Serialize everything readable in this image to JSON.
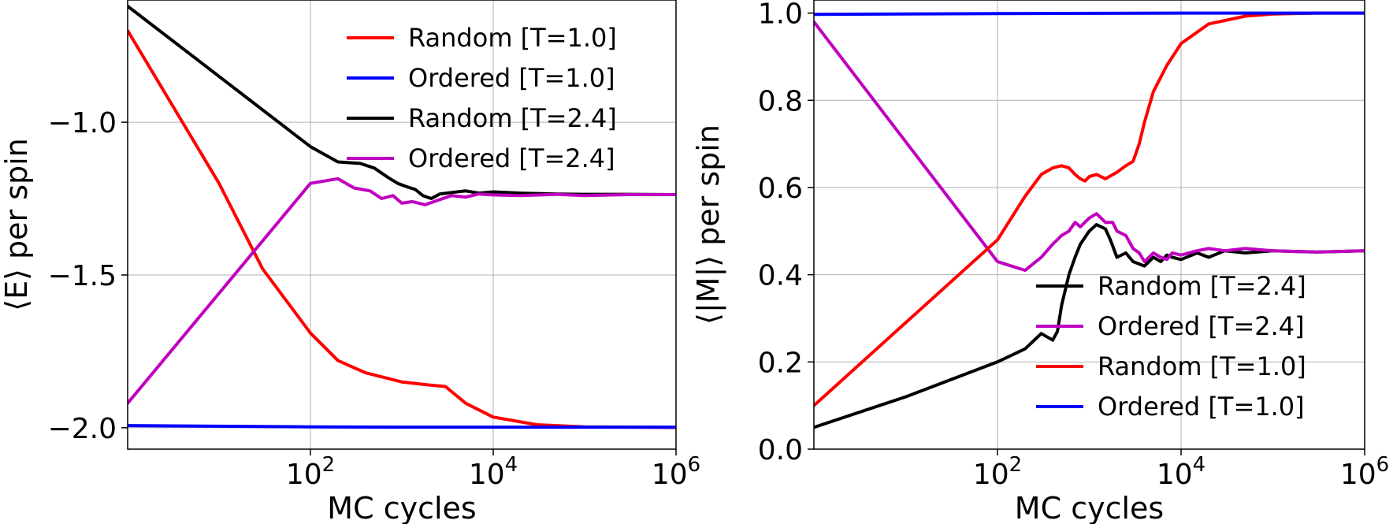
{
  "chart_data": [
    {
      "type": "line",
      "xscale": "log",
      "xlim": [
        1,
        1000000
      ],
      "ylim": [
        -2.07,
        -0.6
      ],
      "xlabel": "MC cycles",
      "ylabel": "⟨E⟩ per spin",
      "xticks": [
        {
          "value": 100,
          "base": "10",
          "exp": "2"
        },
        {
          "value": 10000,
          "base": "10",
          "exp": "4"
        },
        {
          "value": 1000000,
          "base": "10",
          "exp": "6"
        }
      ],
      "yticks": [
        {
          "value": -1.0,
          "label": "−1.0"
        },
        {
          "value": -1.5,
          "label": "−1.5"
        },
        {
          "value": -2.0,
          "label": "−2.0"
        }
      ],
      "grid": true,
      "legend_position": "upper right",
      "series": [
        {
          "name": "Random [T=1.0]",
          "color": "#ff0000",
          "x": [
            1,
            10,
            30,
            100,
            200,
            400,
            1000,
            2000,
            3000,
            5000,
            10000,
            30000,
            100000,
            1000000
          ],
          "y": [
            -0.7,
            -1.2,
            -1.48,
            -1.69,
            -1.78,
            -1.82,
            -1.85,
            -1.86,
            -1.865,
            -1.92,
            -1.965,
            -1.99,
            -1.997,
            -1.999
          ]
        },
        {
          "name": "Ordered [T=1.0]",
          "color": "#0000ff",
          "x": [
            1,
            100,
            1000,
            10000,
            1000000
          ],
          "y": [
            -1.993,
            -1.997,
            -1.998,
            -1.998,
            -1.998
          ]
        },
        {
          "name": "Random [T=2.4]",
          "color": "#000000",
          "x": [
            1,
            100,
            200,
            350,
            500,
            700,
            900,
            1100,
            1400,
            1700,
            2100,
            2600,
            3500,
            5000,
            7000,
            10000,
            20000,
            50000,
            100000,
            300000,
            1000000
          ],
          "y": [
            -0.62,
            -1.08,
            -1.13,
            -1.135,
            -1.15,
            -1.18,
            -1.2,
            -1.21,
            -1.22,
            -1.24,
            -1.25,
            -1.235,
            -1.23,
            -1.225,
            -1.232,
            -1.228,
            -1.232,
            -1.235,
            -1.236,
            -1.236,
            -1.237
          ]
        },
        {
          "name": "Ordered [T=2.4]",
          "color": "#c000c0",
          "x": [
            1,
            100,
            200,
            300,
            450,
            600,
            800,
            1000,
            1300,
            1800,
            2500,
            3500,
            5000,
            7000,
            10000,
            20000,
            50000,
            100000,
            300000,
            1000000
          ],
          "y": [
            -1.92,
            -1.2,
            -1.185,
            -1.215,
            -1.225,
            -1.25,
            -1.24,
            -1.265,
            -1.26,
            -1.27,
            -1.255,
            -1.24,
            -1.245,
            -1.235,
            -1.238,
            -1.24,
            -1.236,
            -1.24,
            -1.237,
            -1.237
          ]
        }
      ]
    },
    {
      "type": "line",
      "xscale": "log",
      "xlim": [
        1,
        1000000
      ],
      "ylim": [
        0.0,
        1.03
      ],
      "xlabel": "MC cycles",
      "ylabel": "⟨|M|⟩ per spin",
      "xticks": [
        {
          "value": 100,
          "base": "10",
          "exp": "2"
        },
        {
          "value": 10000,
          "base": "10",
          "exp": "4"
        },
        {
          "value": 1000000,
          "base": "10",
          "exp": "6"
        }
      ],
      "yticks": [
        {
          "value": 0.0,
          "label": "0.0"
        },
        {
          "value": 0.2,
          "label": "0.2"
        },
        {
          "value": 0.4,
          "label": "0.4"
        },
        {
          "value": 0.6,
          "label": "0.6"
        },
        {
          "value": 0.8,
          "label": "0.8"
        },
        {
          "value": 1.0,
          "label": "1.0"
        }
      ],
      "grid": true,
      "legend_position": "lower right",
      "series": [
        {
          "name": "Random [T=2.4]",
          "color": "#000000",
          "x": [
            1,
            10,
            100,
            200,
            300,
            400,
            450,
            500,
            600,
            700,
            800,
            1000,
            1200,
            1500,
            1700,
            2000,
            2500,
            3000,
            4000,
            5000,
            6000,
            7000,
            8000,
            10000,
            15000,
            20000,
            30000,
            50000,
            100000,
            300000,
            1000000
          ],
          "y": [
            0.05,
            0.12,
            0.2,
            0.23,
            0.265,
            0.25,
            0.27,
            0.33,
            0.4,
            0.44,
            0.47,
            0.5,
            0.515,
            0.505,
            0.48,
            0.44,
            0.45,
            0.43,
            0.42,
            0.44,
            0.43,
            0.445,
            0.44,
            0.435,
            0.45,
            0.44,
            0.455,
            0.45,
            0.455,
            0.452,
            0.455
          ]
        },
        {
          "name": "Ordered [T=2.4]",
          "color": "#c000c0",
          "x": [
            1,
            100,
            200,
            300,
            400,
            500,
            600,
            700,
            800,
            1000,
            1200,
            1500,
            1800,
            2000,
            2500,
            3000,
            3500,
            4000,
            5000,
            6000,
            7000,
            8000,
            10000,
            15000,
            20000,
            30000,
            50000,
            100000,
            300000,
            1000000
          ],
          "y": [
            0.98,
            0.43,
            0.41,
            0.44,
            0.47,
            0.49,
            0.5,
            0.52,
            0.51,
            0.53,
            0.54,
            0.52,
            0.52,
            0.5,
            0.49,
            0.46,
            0.45,
            0.43,
            0.45,
            0.44,
            0.435,
            0.45,
            0.445,
            0.455,
            0.46,
            0.455,
            0.46,
            0.455,
            0.452,
            0.455
          ]
        },
        {
          "name": "Random [T=1.0]",
          "color": "#ff0000",
          "x": [
            1,
            10,
            100,
            200,
            300,
            400,
            500,
            600,
            700,
            800,
            900,
            1000,
            1200,
            1500,
            2000,
            2500,
            3000,
            3500,
            4000,
            5000,
            7000,
            10000,
            20000,
            50000,
            100000,
            300000,
            1000000
          ],
          "y": [
            0.1,
            0.29,
            0.48,
            0.58,
            0.63,
            0.645,
            0.65,
            0.645,
            0.63,
            0.62,
            0.615,
            0.625,
            0.63,
            0.62,
            0.635,
            0.65,
            0.66,
            0.7,
            0.75,
            0.82,
            0.88,
            0.93,
            0.975,
            0.993,
            0.998,
            1.0,
            1.0
          ]
        },
        {
          "name": "Ordered [T=1.0]",
          "color": "#0000ff",
          "x": [
            1,
            100,
            10000,
            1000000
          ],
          "y": [
            0.997,
            0.999,
            1.0,
            1.0
          ]
        }
      ]
    }
  ]
}
